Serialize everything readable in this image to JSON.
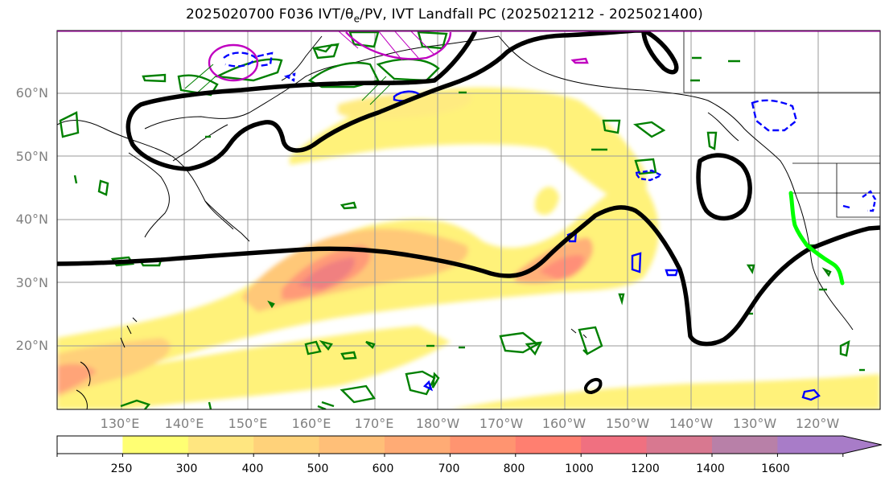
{
  "title": {
    "prefix": "2025020700 F036 IVT/",
    "theta": "θ",
    "sub": "e",
    "suffix": "/PV, IVT Landfall PC (2025021212 - 2025021400)"
  },
  "lat_labels": [
    "60°N",
    "50°N",
    "40°N",
    "30°N",
    "20°N"
  ],
  "lon_labels": [
    "130°E",
    "140°E",
    "150°E",
    "160°E",
    "170°E",
    "180°W",
    "170°W",
    "160°W",
    "150°W",
    "140°W",
    "130°W",
    "120°W"
  ],
  "colorbar": {
    "ticks": [
      "250",
      "300",
      "400",
      "500",
      "600",
      "700",
      "800",
      "1000",
      "1200",
      "1400",
      "1600"
    ],
    "colors": [
      "#ffffff",
      "#ffff73",
      "#ffe680",
      "#ffd27a",
      "#ffbf78",
      "#ffab75",
      "#ff9470",
      "#ff7f70",
      "#f07080",
      "#d87890",
      "#b880a8",
      "#a87cc8"
    ]
  },
  "colors": {
    "pv_contour": "#000000",
    "theta_e_positive": "#0000ff",
    "theta_e_green": "#008000",
    "landfall": "#00ff00",
    "magenta": "#c000c0",
    "coast": "#000000",
    "grid": "#888888"
  }
}
